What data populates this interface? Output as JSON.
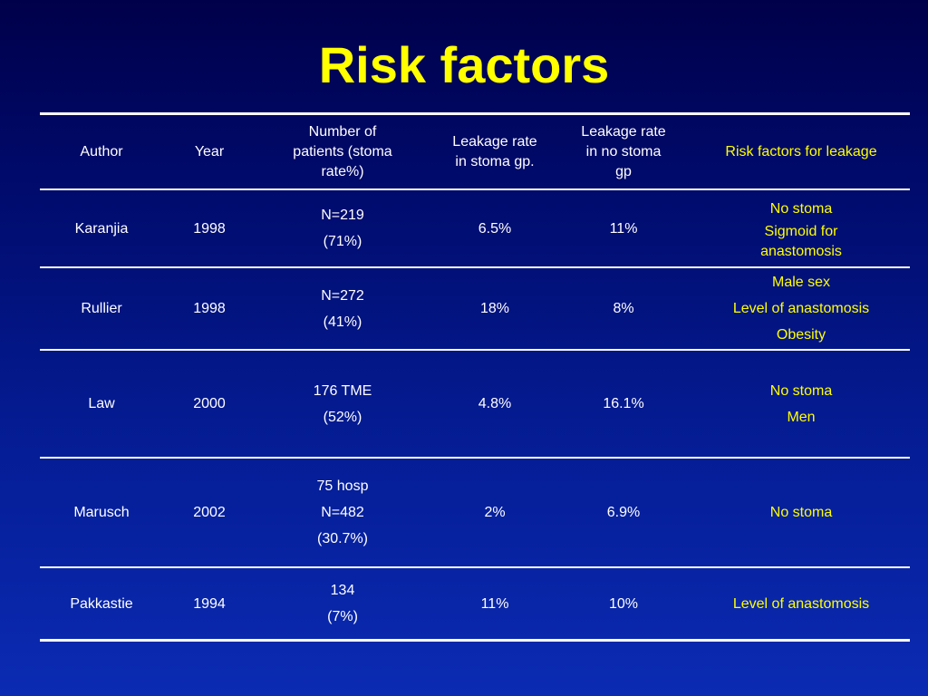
{
  "slide": {
    "title": "Risk factors"
  },
  "table": {
    "headers": {
      "author": "Author",
      "year": "Year",
      "patients": [
        "Number of",
        "patients (stoma",
        "rate%)"
      ],
      "leak_stoma": [
        "Leakage rate",
        "in stoma gp."
      ],
      "leak_no_stoma": [
        "Leakage rate",
        "in no stoma",
        "gp"
      ],
      "risk": "Risk factors for leakage"
    },
    "rows": [
      {
        "author": "Karanjia",
        "year": "1998",
        "patients": [
          "N=219",
          "(71%)"
        ],
        "leak_stoma": "6.5%",
        "leak_no_stoma": "11%",
        "risk": [
          "No stoma",
          "Sigmoid for",
          "anastomosis"
        ]
      },
      {
        "author": "Rullier",
        "year": "1998",
        "patients": [
          "N=272",
          "(41%)"
        ],
        "leak_stoma": "18%",
        "leak_no_stoma": "8%",
        "risk": [
          "Male sex",
          "Level of anastomosis",
          "Obesity"
        ]
      },
      {
        "author": "Law",
        "year": "2000",
        "patients": [
          "176 TME",
          "(52%)"
        ],
        "leak_stoma": "4.8%",
        "leak_no_stoma": "16.1%",
        "risk": [
          "No stoma",
          "Men"
        ]
      },
      {
        "author": "Marusch",
        "year": "2002",
        "patients": [
          "75 hosp",
          "N=482",
          "(30.7%)"
        ],
        "leak_stoma": "2%",
        "leak_no_stoma": "6.9%",
        "risk": [
          "No stoma"
        ]
      },
      {
        "author": "Pakkastie",
        "year": "1994",
        "patients": [
          "134",
          "(7%)"
        ],
        "leak_stoma": "11%",
        "leak_no_stoma": "10%",
        "risk": [
          "Level of anastomosis"
        ]
      }
    ]
  },
  "colors": {
    "title": "#ffff00",
    "risk_text": "#ffff00",
    "text": "#ffffff",
    "background_top": "#00004a",
    "background_bottom": "#0b2bb3"
  }
}
